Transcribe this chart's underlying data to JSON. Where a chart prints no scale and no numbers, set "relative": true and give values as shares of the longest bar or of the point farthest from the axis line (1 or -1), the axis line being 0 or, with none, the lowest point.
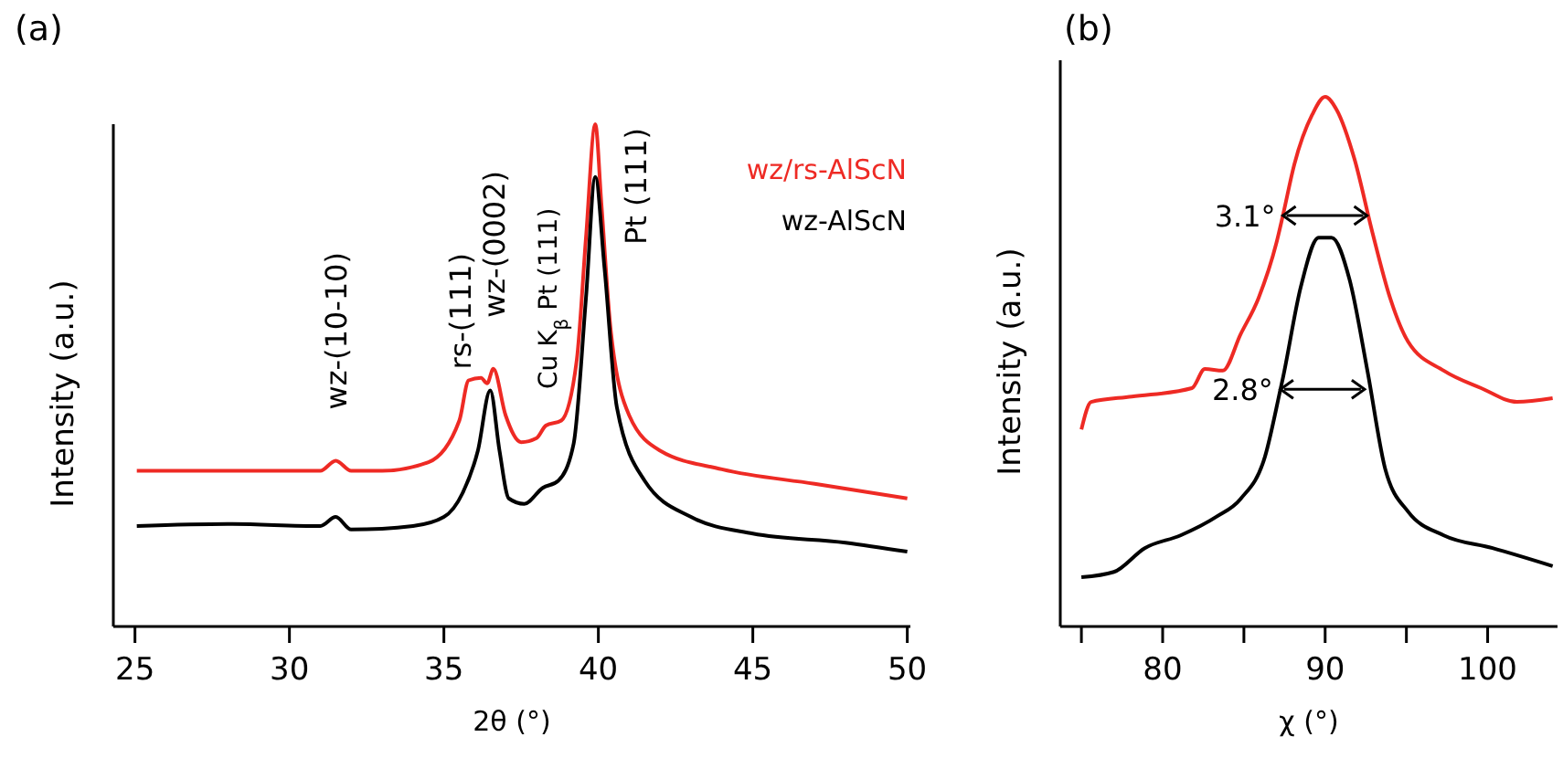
{
  "chart_data": [
    {
      "type": "line",
      "title": "(a)",
      "xlabel": "2θ (°)",
      "ylabel": "Intensity (a.u.)",
      "relative": true,
      "xlim": [
        24.3,
        50.1
      ],
      "xticks": [
        25,
        30,
        35,
        40,
        45,
        50
      ],
      "legend": "top right",
      "line_style": "solid",
      "marker": "none",
      "series": [
        {
          "name": "wz/rs-AlScN",
          "color": "#ee2a24",
          "x": [
            25.06,
            28,
            31,
            31.5,
            32,
            33,
            34.5,
            35.5,
            35.8,
            36.2,
            36.4,
            36.6,
            37.0,
            37.5,
            38.0,
            38.3,
            38.8,
            39.3,
            39.6,
            39.9,
            40.1,
            40.4,
            41,
            42,
            44,
            47,
            50
          ],
          "values": [
            0.31,
            0.31,
            0.31,
            0.33,
            0.31,
            0.31,
            0.327,
            0.41,
            0.49,
            0.495,
            0.484,
            0.513,
            0.42,
            0.367,
            0.375,
            0.4,
            0.41,
            0.53,
            0.775,
            1.0,
            0.84,
            0.59,
            0.42,
            0.35,
            0.313,
            0.284,
            0.255
          ]
        },
        {
          "name": "wz-AlScN",
          "color": "#000000",
          "x": [
            25.06,
            28,
            31,
            31.5,
            32,
            34,
            35,
            35.6,
            36.1,
            36.5,
            36.8,
            37.1,
            37.6,
            38.2,
            38.7,
            39.2,
            39.6,
            39.9,
            40.2,
            40.6,
            41.5,
            43,
            45,
            48,
            50
          ],
          "values": [
            0.2,
            0.204,
            0.2,
            0.218,
            0.193,
            0.2,
            0.218,
            0.265,
            0.35,
            0.47,
            0.35,
            0.255,
            0.244,
            0.276,
            0.29,
            0.364,
            0.655,
            0.895,
            0.713,
            0.436,
            0.29,
            0.218,
            0.185,
            0.167,
            0.149
          ]
        }
      ],
      "annotations": [
        {
          "text": "wz-(10-10)",
          "x": 31.5,
          "y": 0.33
        },
        {
          "text": "rs-(111)",
          "x": 35.5,
          "y": 0.41
        },
        {
          "text": "wz-(0002)",
          "x": 36.6,
          "y": 0.513
        },
        {
          "text": "Cu K$_{β}$ Pt (111)",
          "x": 38.3,
          "y": 0.4
        },
        {
          "text": "Pt (111)",
          "x": 39.9,
          "y": 1.0
        }
      ]
    },
    {
      "type": "line",
      "title": "(b)",
      "xlabel": "χ (°)",
      "ylabel": "Intensity (a.u.)",
      "relative": true,
      "xlim": [
        73.7,
        104.3
      ],
      "xticks": [
        {
          "value": 75,
          "label": null
        },
        80,
        {
          "value": 85,
          "label": null
        },
        90,
        {
          "value": 95,
          "label": null
        },
        100
      ],
      "line_style": "solid",
      "marker": "none",
      "series": [
        {
          "color": "#ee2a24",
          "x": [
            75.0,
            75.6,
            78.1,
            81.8,
            82.6,
            83.7,
            84.8,
            85.9,
            87.0,
            87.4,
            88.1,
            89.2,
            90.0,
            90.7,
            91.8,
            92.9,
            94.0,
            95.1,
            97.3,
            99.6,
            101.8,
            104.0
          ],
          "values": [
            0.372,
            0.424,
            0.434,
            0.45,
            0.486,
            0.483,
            0.552,
            0.62,
            0.724,
            0.776,
            0.872,
            0.966,
            1.0,
            0.976,
            0.883,
            0.745,
            0.62,
            0.538,
            0.483,
            0.45,
            0.424,
            0.431
          ]
        },
        {
          "color": "#000000",
          "x": [
            75.0,
            77.0,
            78.9,
            81.1,
            83.3,
            84.8,
            86.3,
            87.25,
            87.4,
            88.5,
            89.6,
            90.4,
            91.5,
            92.6,
            93.7,
            95.1,
            97.3,
            100.3,
            104.0
          ],
          "values": [
            0.093,
            0.103,
            0.148,
            0.172,
            0.207,
            0.241,
            0.321,
            0.448,
            0.469,
            0.641,
            0.734,
            0.734,
            0.655,
            0.483,
            0.297,
            0.217,
            0.172,
            0.148,
            0.114
          ]
        }
      ],
      "annotations": [
        {
          "text": "3.1°",
          "x": 87.4,
          "y": 0.776
        },
        {
          "text": "2.8°",
          "x": 87.25,
          "y": 0.448
        }
      ]
    }
  ]
}
